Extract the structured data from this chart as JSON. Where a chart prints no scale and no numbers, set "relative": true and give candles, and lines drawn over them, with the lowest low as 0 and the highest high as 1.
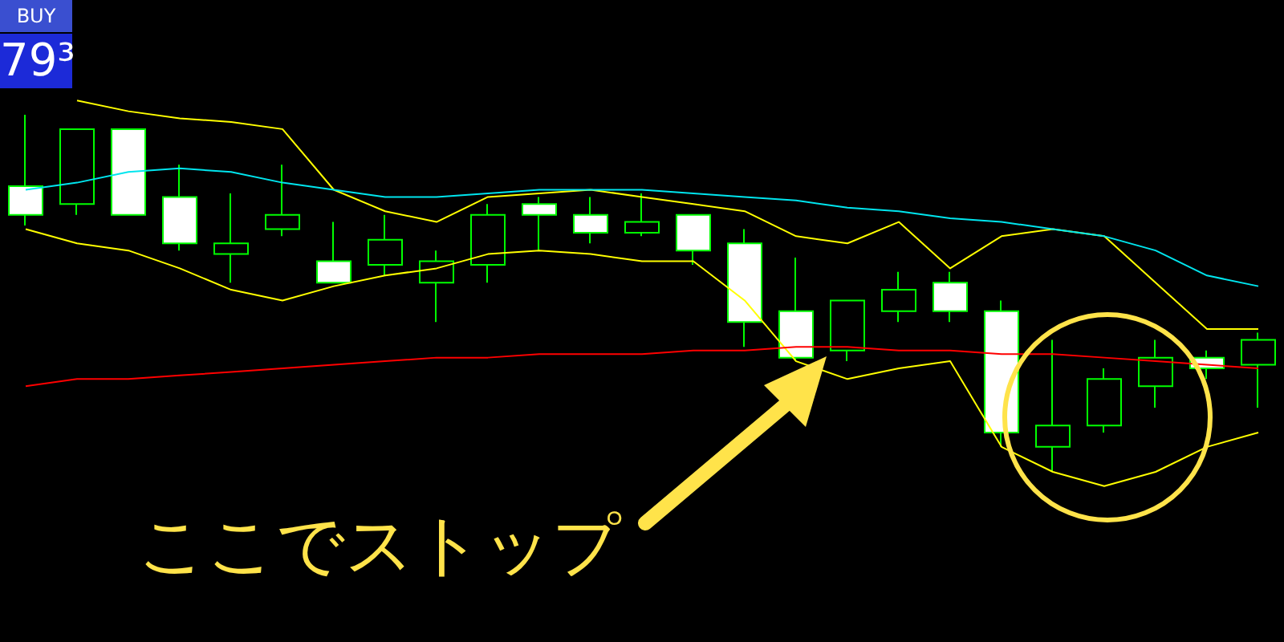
{
  "chart_data": {
    "type": "candlestick",
    "relative": true,
    "grid": false,
    "color": "#00ff00",
    "categories": [
      null,
      null,
      null,
      null,
      null,
      null,
      null,
      null,
      null,
      null,
      null,
      null,
      null,
      null,
      null,
      null,
      null,
      null,
      null,
      null,
      null,
      null,
      null,
      null,
      null
    ],
    "ohlc": [
      [
        0.72,
        1,
        0.69,
        0.8
      ],
      [
        0.96,
        0.96,
        0.72,
        0.75
      ],
      [
        0.72,
        0.96,
        0.72,
        0.96
      ],
      [
        0.64,
        0.86,
        0.62,
        0.77
      ],
      [
        0.64,
        0.78,
        0.53,
        0.61
      ],
      [
        0.72,
        0.86,
        0.66,
        0.68
      ],
      [
        0.53,
        0.7,
        0.53,
        0.59
      ],
      [
        0.65,
        0.72,
        0.55,
        0.58
      ],
      [
        0.59,
        0.62,
        0.42,
        0.53
      ],
      [
        0.72,
        0.75,
        0.53,
        0.58
      ],
      [
        0.72,
        0.77,
        0.62,
        0.75
      ],
      [
        0.67,
        0.77,
        0.64,
        0.72
      ],
      [
        0.7,
        0.78,
        0.66,
        0.67
      ],
      [
        0.62,
        0.72,
        0.58,
        0.72
      ],
      [
        0.42,
        0.68,
        0.35,
        0.64
      ],
      [
        0.32,
        0.6,
        0.31,
        0.45
      ],
      [
        0.48,
        0.48,
        0.31,
        0.34
      ],
      [
        0.51,
        0.56,
        0.42,
        0.45
      ],
      [
        0.45,
        0.56,
        0.42,
        0.53
      ],
      [
        0.11,
        0.48,
        0.07,
        0.45
      ],
      [
        0.13,
        0.37,
        0,
        0.07
      ],
      [
        0.26,
        0.29,
        0.11,
        0.13
      ],
      [
        0.32,
        0.37,
        0.18,
        0.24
      ],
      [
        0.29,
        0.34,
        0.26,
        0.32
      ],
      [
        0.37,
        0.39,
        0.18,
        0.3
      ]
    ],
    "series": [
      {
        "type": "line",
        "color": "#ffff00",
        "values": [
          null,
          1.04,
          1.01,
          0.99,
          0.98,
          0.96,
          0.79,
          0.73,
          0.7,
          0.77,
          0.78,
          0.79,
          0.77,
          0.75,
          0.73,
          0.66,
          0.64,
          0.7,
          0.57,
          0.66,
          0.68,
          0.66,
          0.53,
          0.4,
          0.4
        ]
      },
      {
        "type": "line",
        "color": "#00e5ee",
        "values": [
          0.79,
          0.81,
          0.84,
          0.85,
          0.84,
          0.81,
          0.79,
          0.77,
          0.77,
          0.78,
          0.79,
          0.79,
          0.79,
          0.78,
          0.77,
          0.76,
          0.74,
          0.73,
          0.71,
          0.7,
          0.68,
          0.66,
          0.62,
          0.55,
          0.52
        ]
      },
      {
        "type": "line",
        "color": "#ffff00",
        "values": [
          0.68,
          0.64,
          0.62,
          0.57,
          0.51,
          0.48,
          0.52,
          0.55,
          0.57,
          0.61,
          0.62,
          0.61,
          0.59,
          0.59,
          0.48,
          0.31,
          0.26,
          0.29,
          0.31,
          0.07,
          0,
          -0.04,
          0,
          0.07,
          0.11
        ]
      },
      {
        "type": "line",
        "color": "#ff0000",
        "values": [
          0.24,
          0.26,
          0.26,
          0.27,
          0.28,
          0.29,
          0.3,
          0.31,
          0.32,
          0.32,
          0.33,
          0.33,
          0.33,
          0.34,
          0.34,
          0.35,
          0.35,
          0.34,
          0.34,
          0.33,
          0.33,
          0.32,
          0.31,
          0.3,
          0.29
        ]
      }
    ],
    "annotations": [
      "BUY",
      "79³",
      "ここでストップ"
    ]
  }
}
